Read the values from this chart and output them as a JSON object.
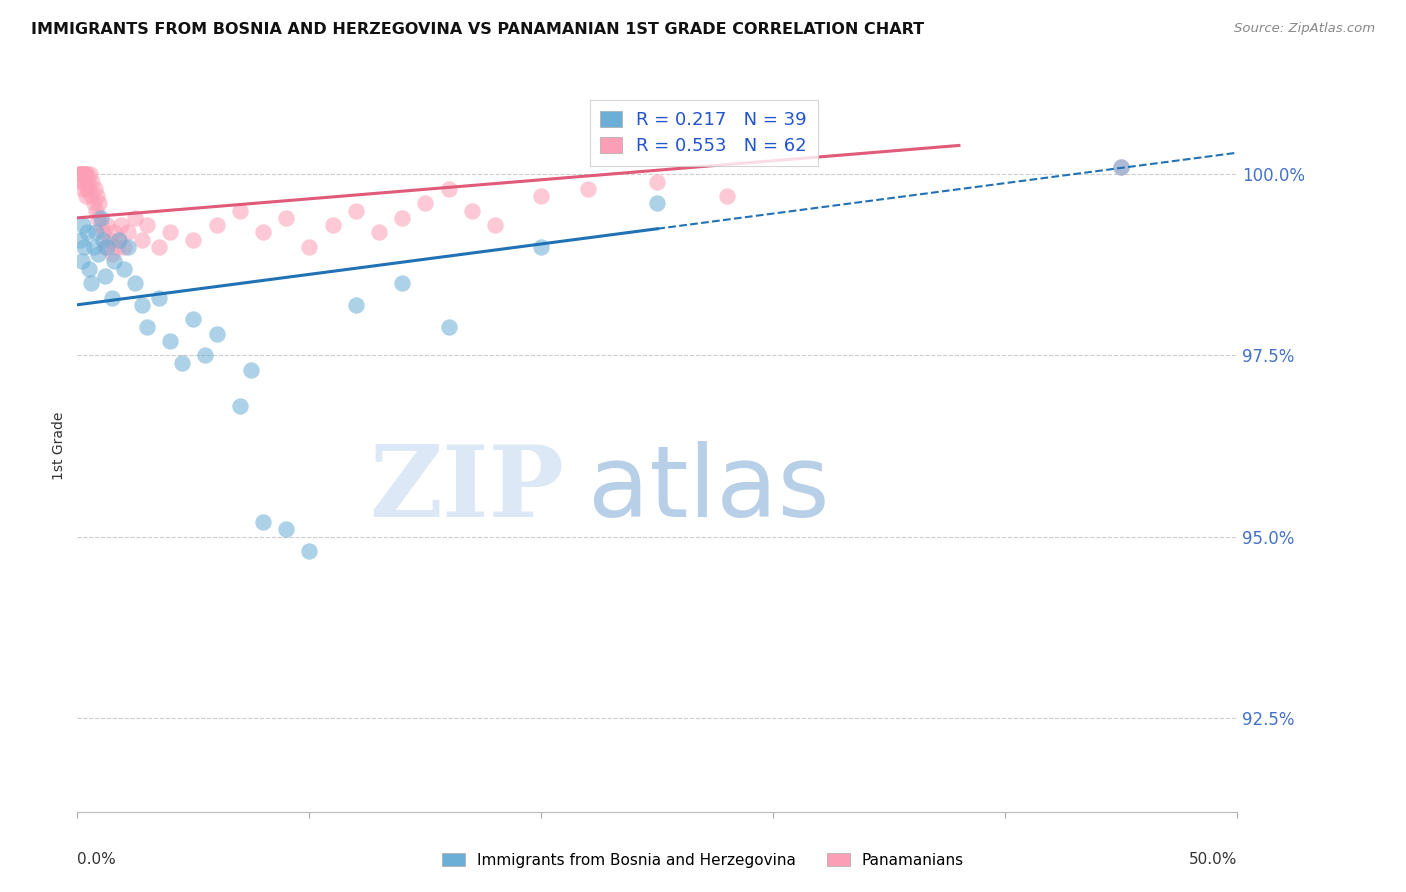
{
  "title": "IMMIGRANTS FROM BOSNIA AND HERZEGOVINA VS PANAMANIAN 1ST GRADE CORRELATION CHART",
  "source": "Source: ZipAtlas.com",
  "ylabel": "1st Grade",
  "yticks": [
    92.5,
    95.0,
    97.5,
    100.0
  ],
  "ytick_labels": [
    "92.5%",
    "95.0%",
    "97.5%",
    "100.0%"
  ],
  "xlim": [
    0.0,
    50.0
  ],
  "ylim": [
    91.2,
    101.3
  ],
  "ymin_plot": 91.2,
  "ymax_plot": 101.3,
  "blue_color": "#6baed6",
  "pink_color": "#fc9eb5",
  "blue_line_color": "#2171b5",
  "pink_line_color": "#e05a7a",
  "legend_r_blue": "R = 0.217",
  "legend_n_blue": "N = 39",
  "legend_r_pink": "R = 0.553",
  "legend_n_pink": "N = 62",
  "blue_x": [
    0.1,
    0.2,
    0.25,
    0.3,
    0.4,
    0.5,
    0.6,
    0.7,
    0.8,
    0.9,
    1.0,
    1.1,
    1.2,
    1.3,
    1.5,
    1.6,
    1.8,
    2.0,
    2.2,
    2.5,
    2.8,
    3.0,
    3.5,
    4.0,
    4.5,
    5.0,
    5.5,
    6.0,
    7.0,
    7.5,
    8.0,
    9.0,
    10.0,
    12.0,
    14.0,
    16.0,
    20.0,
    25.0,
    45.0
  ],
  "blue_y": [
    99.1,
    98.8,
    99.3,
    99.0,
    99.2,
    98.7,
    98.5,
    99.0,
    99.2,
    98.9,
    99.4,
    99.1,
    98.6,
    99.0,
    98.3,
    98.8,
    99.1,
    98.7,
    99.0,
    98.5,
    98.2,
    97.9,
    98.3,
    97.7,
    97.4,
    98.0,
    97.5,
    97.8,
    96.8,
    97.3,
    95.2,
    95.1,
    94.8,
    98.2,
    98.5,
    97.9,
    99.0,
    99.6,
    100.1
  ],
  "pink_x": [
    0.05,
    0.1,
    0.12,
    0.15,
    0.18,
    0.2,
    0.22,
    0.25,
    0.28,
    0.3,
    0.32,
    0.35,
    0.38,
    0.4,
    0.42,
    0.45,
    0.5,
    0.55,
    0.6,
    0.65,
    0.7,
    0.75,
    0.8,
    0.85,
    0.9,
    0.95,
    1.0,
    1.1,
    1.2,
    1.3,
    1.4,
    1.5,
    1.6,
    1.7,
    1.8,
    1.9,
    2.0,
    2.2,
    2.5,
    2.8,
    3.0,
    3.5,
    4.0,
    5.0,
    6.0,
    7.0,
    8.0,
    9.0,
    10.0,
    11.0,
    12.0,
    13.0,
    14.0,
    15.0,
    16.0,
    17.0,
    18.0,
    20.0,
    22.0,
    25.0,
    28.0,
    45.0
  ],
  "pink_y": [
    100.0,
    100.0,
    100.0,
    100.0,
    99.9,
    100.0,
    100.0,
    99.8,
    100.0,
    99.9,
    100.0,
    100.0,
    99.7,
    99.8,
    100.0,
    99.9,
    99.8,
    100.0,
    99.7,
    99.9,
    99.6,
    99.8,
    99.5,
    99.7,
    99.4,
    99.6,
    99.3,
    99.2,
    99.0,
    99.3,
    99.1,
    98.9,
    99.2,
    99.0,
    99.1,
    99.3,
    99.0,
    99.2,
    99.4,
    99.1,
    99.3,
    99.0,
    99.2,
    99.1,
    99.3,
    99.5,
    99.2,
    99.4,
    99.0,
    99.3,
    99.5,
    99.2,
    99.4,
    99.6,
    99.8,
    99.5,
    99.3,
    99.7,
    99.8,
    99.9,
    99.7,
    100.1
  ],
  "blue_trend_x0": 0.0,
  "blue_trend_y0": 98.2,
  "blue_trend_x1": 50.0,
  "blue_trend_y1": 100.3,
  "pink_trend_x0": 0.0,
  "pink_trend_y0": 99.4,
  "pink_trend_x1": 38.0,
  "pink_trend_y1": 100.4,
  "blue_dash_x0": 25.0,
  "blue_dash_x1": 50.0,
  "watermark_zip": "ZIP",
  "watermark_atlas": "atlas"
}
